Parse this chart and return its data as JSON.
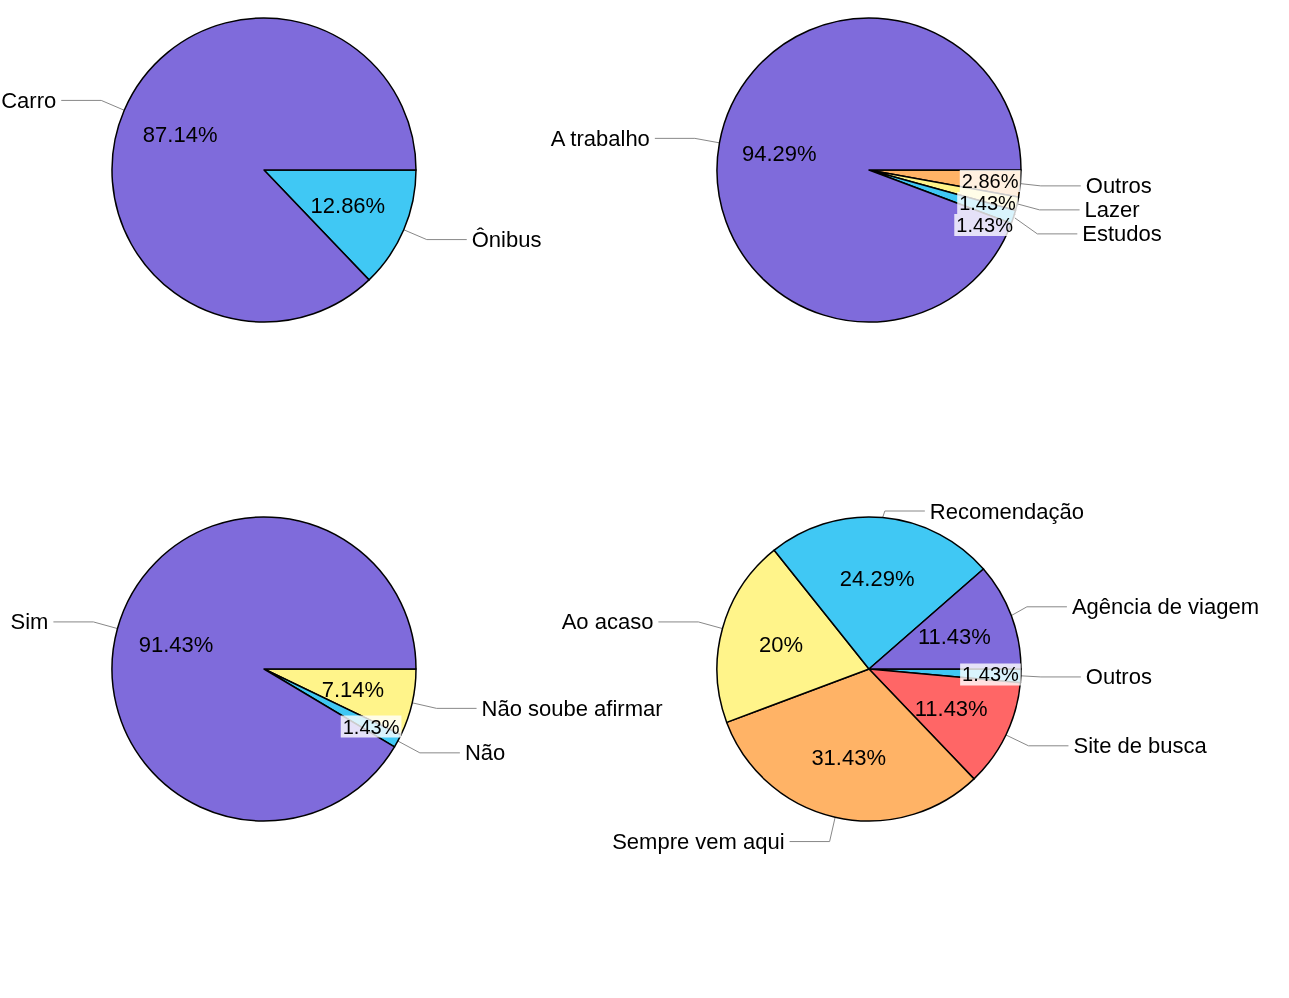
{
  "chart_data": [
    {
      "type": "pie",
      "categories": [
        "Ônibus",
        "Carro"
      ],
      "values": [
        12.86,
        87.14
      ],
      "colors": [
        "#40c8f4",
        "#7f6bdb"
      ],
      "value_labels": [
        "12.86%",
        "87.14%"
      ]
    },
    {
      "type": "pie",
      "categories": [
        "Outros",
        "Lazer",
        "Estudos",
        "A trabalho"
      ],
      "values": [
        2.86,
        1.43,
        1.43,
        94.29
      ],
      "colors": [
        "#ffb366",
        "#fff48a",
        "#40c8f4",
        "#7f6bdb"
      ],
      "value_labels": [
        "2.86%",
        "1.43%",
        "1.43%",
        "94.29%"
      ]
    },
    {
      "type": "pie",
      "categories": [
        "Não soube afirmar",
        "Não",
        "Sim"
      ],
      "values": [
        7.14,
        1.43,
        91.43
      ],
      "colors": [
        "#fff48a",
        "#40c8f4",
        "#7f6bdb"
      ],
      "value_labels": [
        "7.14%",
        "1.43%",
        "91.43%"
      ]
    },
    {
      "type": "pie",
      "categories": [
        "Outros",
        "Site de busca",
        "Sempre vem aqui",
        "Ao acaso",
        "Recomendação",
        "Agência de viagem"
      ],
      "values": [
        1.43,
        11.43,
        31.43,
        20,
        24.29,
        11.43
      ],
      "colors": [
        "#40c8f4",
        "#ff6666",
        "#ffb366",
        "#fff48a",
        "#40c8f4",
        "#7f6bdb"
      ],
      "value_labels": [
        "1.43%",
        "11.43%",
        "31.43%",
        "20%",
        "24.29%",
        "11.43%"
      ]
    }
  ]
}
